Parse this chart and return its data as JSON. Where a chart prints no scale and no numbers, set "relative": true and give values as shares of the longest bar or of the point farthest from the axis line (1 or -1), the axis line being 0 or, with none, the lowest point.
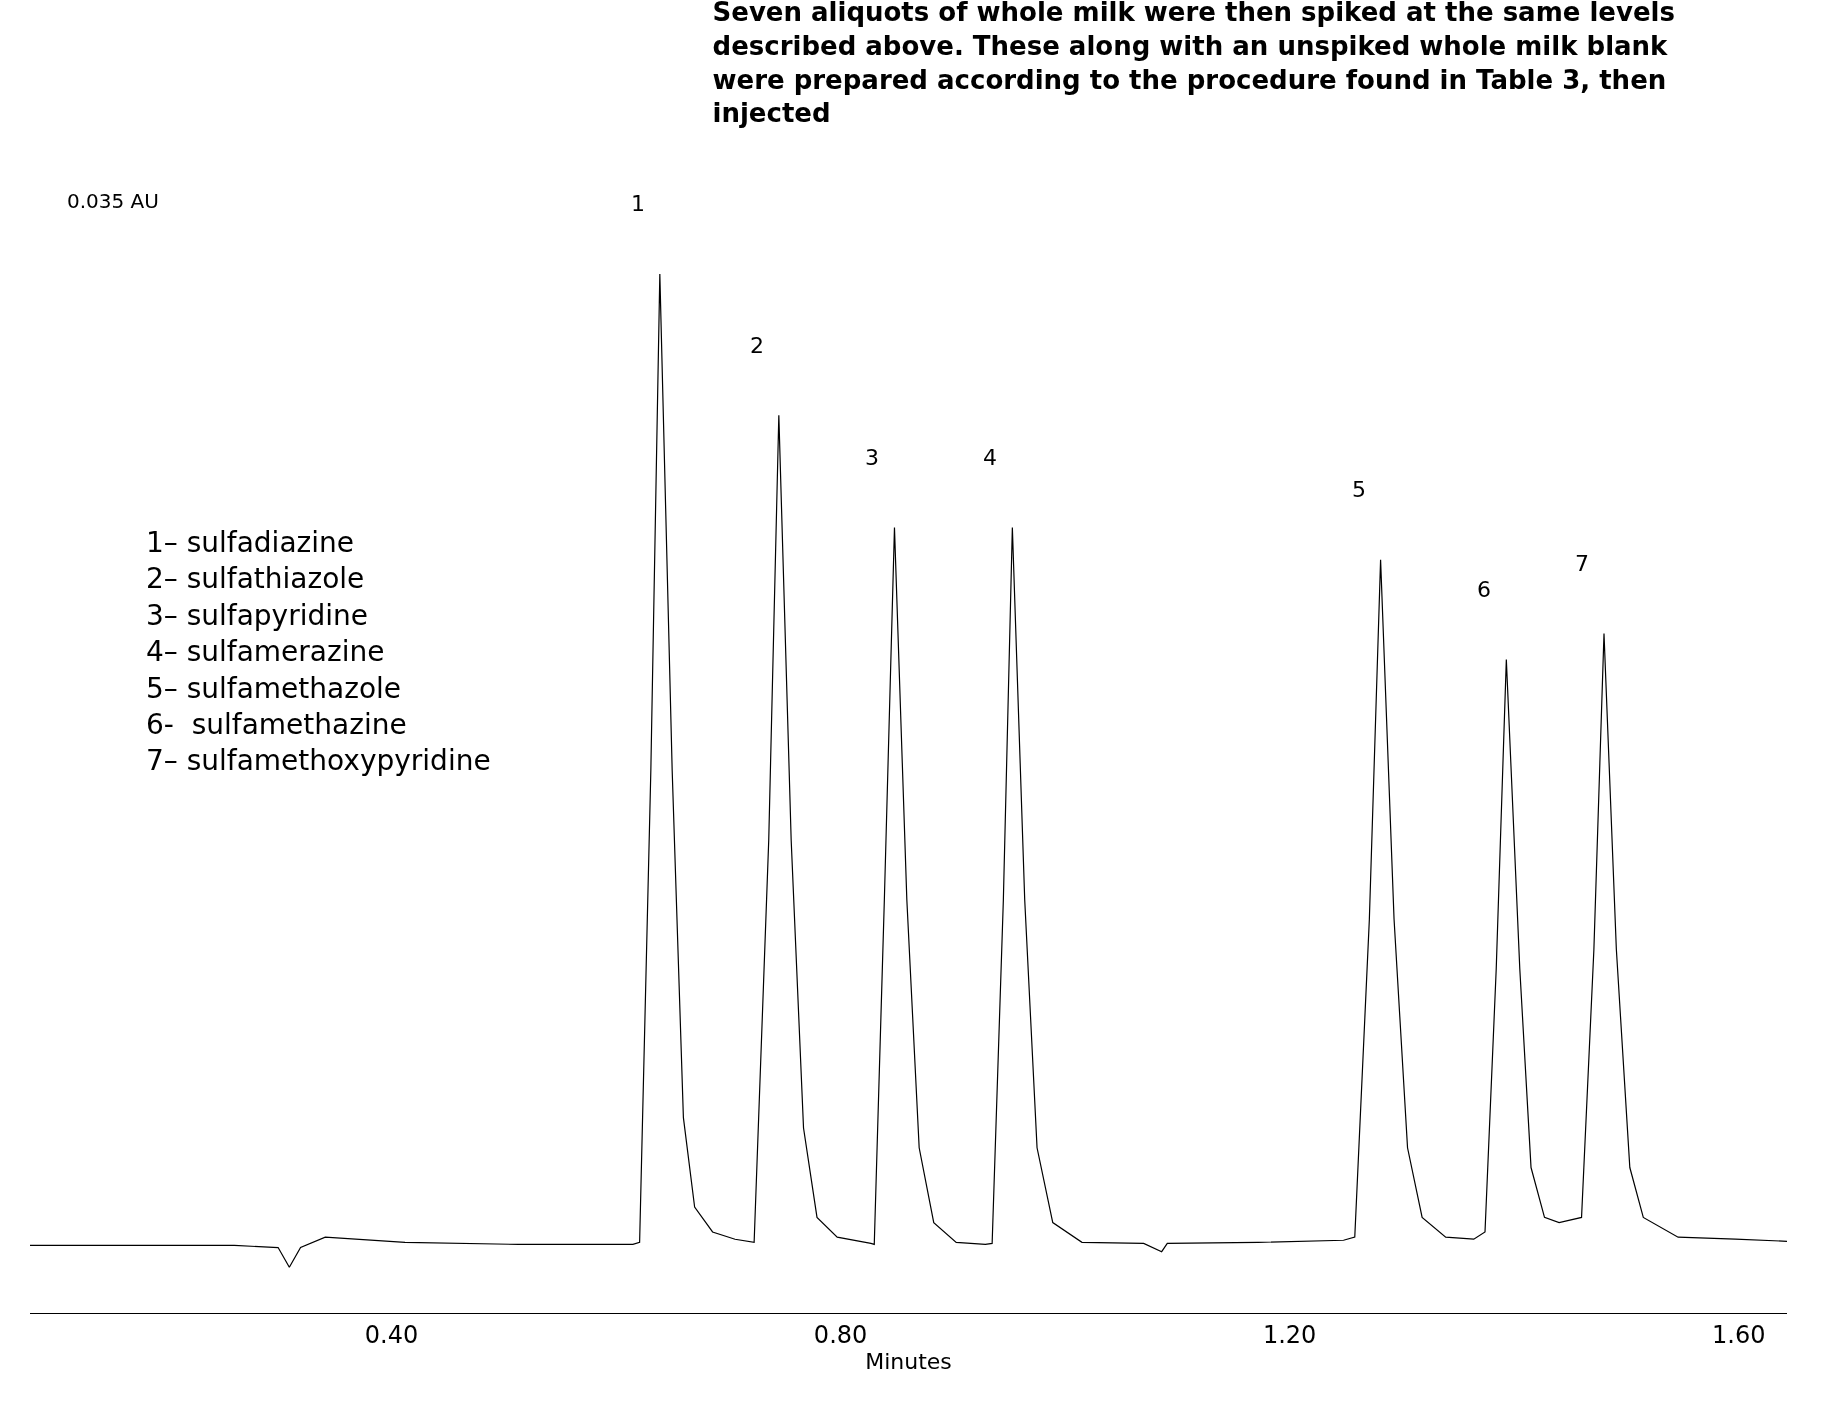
{
  "chart_data": {
    "type": "line",
    "relative": true,
    "title": "Seven aliquots of whole milk were then spiked at the same levels described above. These along with an unspiked whole milk blank were prepared according to the procedure found in Table 3, then injected",
    "xlabel": "Minutes",
    "xlim": [
      0.078,
      1.643
    ],
    "xticks": [
      {
        "value": 0.4,
        "label": "0.40"
      },
      {
        "value": 0.8,
        "label": "0.80"
      },
      {
        "value": 1.2,
        "label": "1.20"
      },
      {
        "value": 1.6,
        "label": "1.60"
      }
    ],
    "marker": "none",
    "line_style": "solid",
    "series": [
      {
        "color": "#000000",
        "x": [
          0.078,
          0.159,
          0.26,
          0.299,
          0.309,
          0.319,
          0.341,
          0.412,
          0.513,
          0.615,
          0.621,
          0.631,
          0.639,
          0.65,
          0.66,
          0.67,
          0.686,
          0.706,
          0.723,
          0.736,
          0.745,
          0.756,
          0.767,
          0.779,
          0.797,
          0.827,
          0.83,
          0.839,
          0.848,
          0.859,
          0.87,
          0.883,
          0.903,
          0.929,
          0.935,
          0.945,
          0.953,
          0.964,
          0.975,
          0.989,
          1.015,
          1.07,
          1.086,
          1.091,
          1.172,
          1.248,
          1.258,
          1.271,
          1.281,
          1.293,
          1.305,
          1.318,
          1.339,
          1.364,
          1.374,
          1.384,
          1.393,
          1.405,
          1.415,
          1.427,
          1.44,
          1.46,
          1.471,
          1.48,
          1.491,
          1.503,
          1.515,
          1.546,
          1.597,
          1.643
        ],
        "values": [
          0.065,
          0.065,
          0.065,
          0.063,
          0.044,
          0.063,
          0.073,
          0.068,
          0.066,
          0.066,
          0.068,
          0.522,
          1.0,
          0.522,
          0.188,
          0.102,
          0.078,
          0.071,
          0.068,
          0.455,
          0.864,
          0.455,
          0.178,
          0.092,
          0.073,
          0.067,
          0.066,
          0.398,
          0.756,
          0.398,
          0.159,
          0.087,
          0.068,
          0.066,
          0.067,
          0.398,
          0.756,
          0.398,
          0.159,
          0.087,
          0.068,
          0.067,
          0.059,
          0.067,
          0.068,
          0.07,
          0.073,
          0.379,
          0.725,
          0.379,
          0.159,
          0.092,
          0.073,
          0.071,
          0.078,
          0.331,
          0.629,
          0.331,
          0.14,
          0.092,
          0.087,
          0.092,
          0.35,
          0.654,
          0.35,
          0.14,
          0.092,
          0.073,
          0.071,
          0.069
        ]
      }
    ],
    "annotations": [
      {
        "text": "1",
        "x": 0.639,
        "y": 1.0
      },
      {
        "text": "2",
        "x": 0.745,
        "y": 0.864
      },
      {
        "text": "3",
        "x": 0.848,
        "y": 0.756
      },
      {
        "text": "4",
        "x": 0.953,
        "y": 0.756
      },
      {
        "text": "5",
        "x": 1.281,
        "y": 0.725
      },
      {
        "text": "6",
        "x": 1.393,
        "y": 0.629
      },
      {
        "text": "7",
        "x": 1.48,
        "y": 0.654
      },
      "0.035 AU",
      "1– sulfadiazine\n2– sulfathiazole\n3– sulfapyridine\n4– sulfamerazine\n5– sulfamethazole\n6-  sulfamethazine\n7– sulfamethoxypyridine"
    ]
  }
}
